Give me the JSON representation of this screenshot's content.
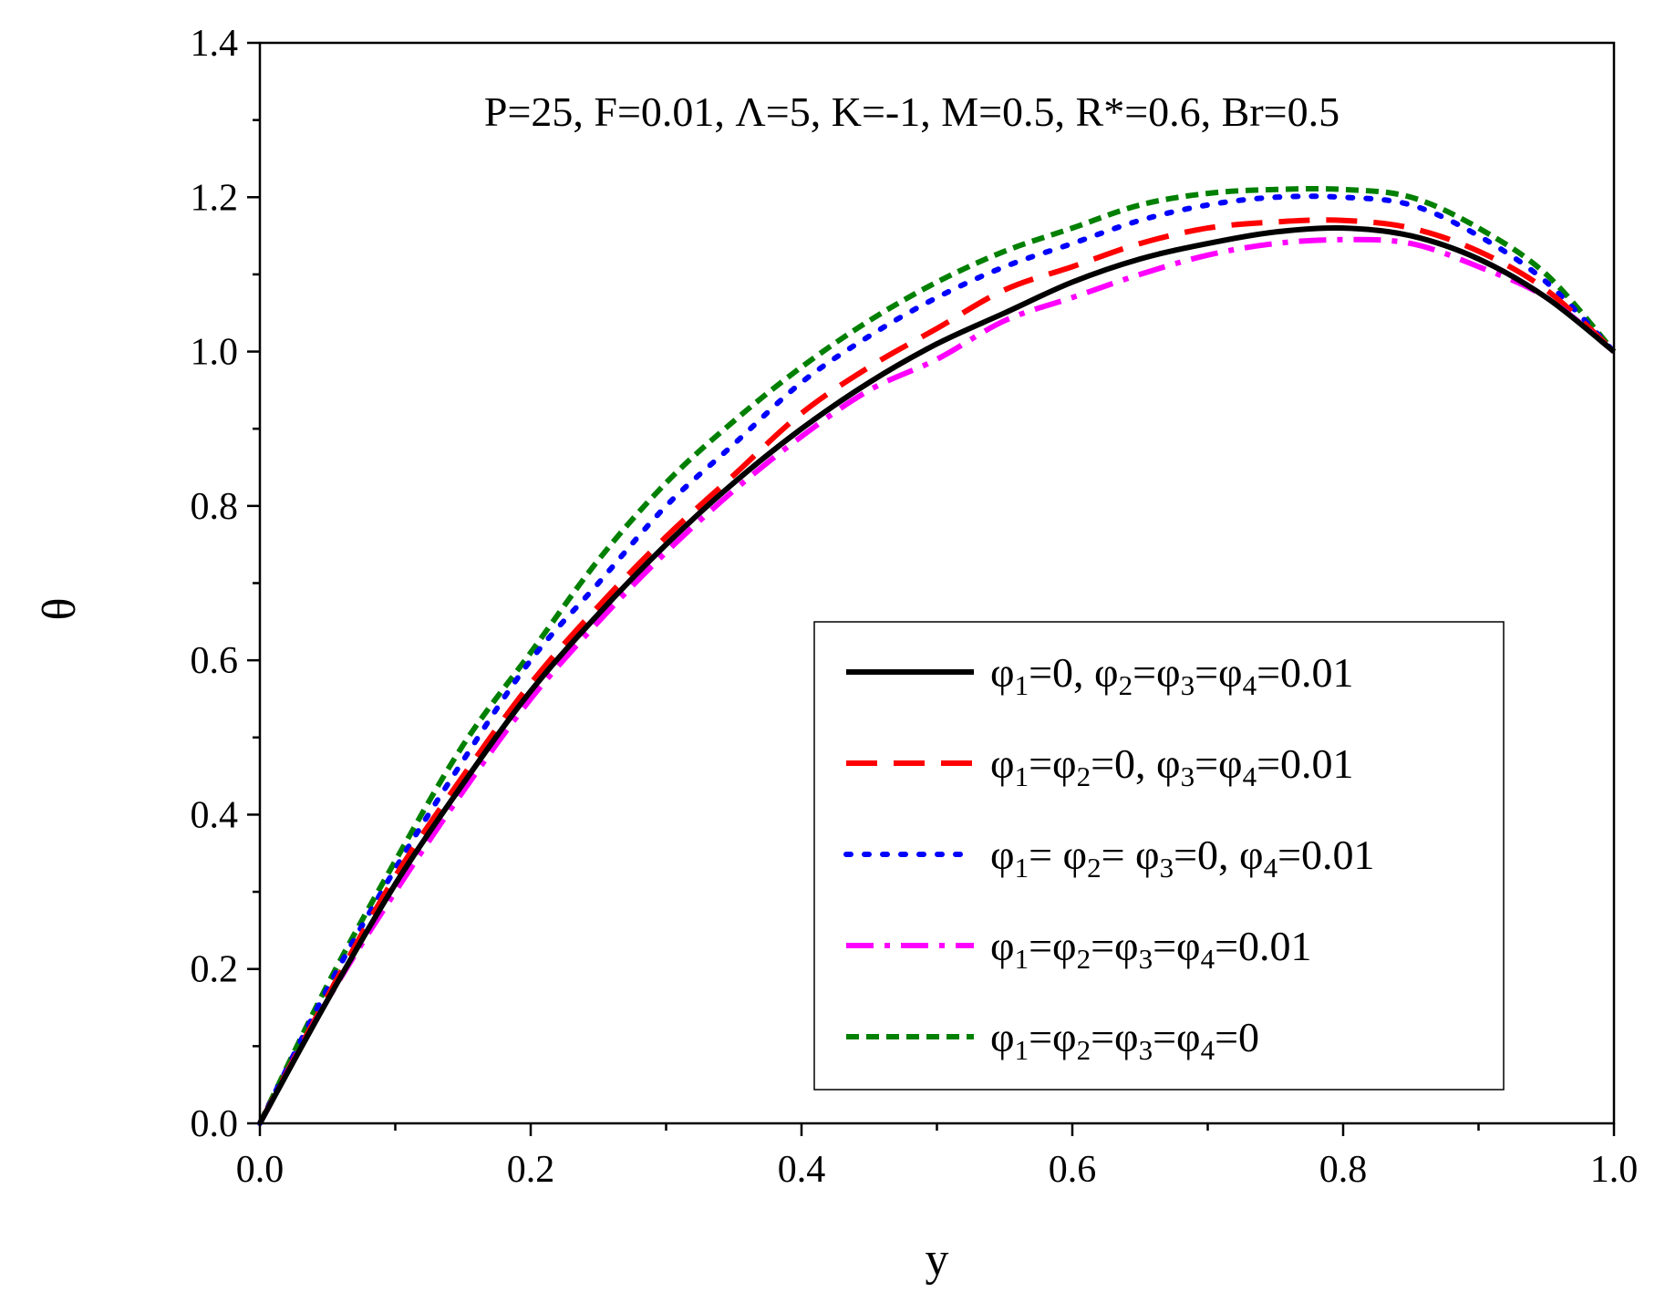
{
  "chart_data": {
    "type": "line",
    "title": "",
    "xlabel": "y",
    "ylabel": "θ",
    "xlim": [
      0.0,
      1.0
    ],
    "ylim": [
      0.0,
      1.4
    ],
    "x_ticks": [
      "0.0",
      "0.2",
      "0.4",
      "0.6",
      "0.8",
      "1.0"
    ],
    "y_ticks": [
      "0.0",
      "0.2",
      "0.4",
      "0.6",
      "0.8",
      "1.0",
      "1.2",
      "1.4"
    ],
    "x_tick_values": [
      0.0,
      0.2,
      0.4,
      0.6,
      0.8,
      1.0
    ],
    "y_tick_values": [
      0.0,
      0.2,
      0.4,
      0.6,
      0.8,
      1.0,
      1.2,
      1.4
    ],
    "annotation": "P=25, F=0.01, Λ=5, K=-1, M=0.5, R*=0.6, Br=0.5",
    "legend_position": "bottom-right",
    "grid": false,
    "x": [
      0.0,
      0.05,
      0.1,
      0.15,
      0.2,
      0.25,
      0.3,
      0.35,
      0.4,
      0.45,
      0.5,
      0.55,
      0.6,
      0.65,
      0.7,
      0.75,
      0.8,
      0.85,
      0.9,
      0.95,
      1.0
    ],
    "series": [
      {
        "name": "φ1=0, φ2=φ3=φ4=0.01",
        "label_parts": [
          [
            "φ",
            "1"
          ],
          [
            "=0, φ",
            "2"
          ],
          [
            "=φ",
            "3"
          ],
          [
            "=φ",
            "4"
          ],
          [
            "=0.01",
            ""
          ]
        ],
        "color": "#000000",
        "style": "solid",
        "values": [
          0.0,
          0.16,
          0.31,
          0.44,
          0.56,
          0.66,
          0.75,
          0.83,
          0.9,
          0.96,
          1.01,
          1.05,
          1.09,
          1.12,
          1.14,
          1.155,
          1.16,
          1.15,
          1.12,
          1.07,
          1.0
        ]
      },
      {
        "name": "φ1=φ2=0, φ3=φ4=0.01",
        "label_parts": [
          [
            "φ",
            "1"
          ],
          [
            "=φ",
            "2"
          ],
          [
            "=0, φ",
            "3"
          ],
          [
            "=φ",
            "4"
          ],
          [
            "=0.01",
            ""
          ]
        ],
        "color": "#ff0000",
        "style": "dash",
        "values": [
          0.0,
          0.165,
          0.32,
          0.45,
          0.57,
          0.67,
          0.76,
          0.84,
          0.92,
          0.98,
          1.03,
          1.08,
          1.11,
          1.14,
          1.16,
          1.168,
          1.17,
          1.16,
          1.13,
          1.08,
          1.0
        ]
      },
      {
        "name": "φ1= φ2= φ3=0, φ4=0.01",
        "label_parts": [
          [
            "φ",
            "1"
          ],
          [
            "= φ",
            "2"
          ],
          [
            "= φ",
            "3"
          ],
          [
            "=0, φ",
            "4"
          ],
          [
            "=0.01",
            ""
          ]
        ],
        "color": "#0000ff",
        "style": "dot",
        "values": [
          0.0,
          0.175,
          0.33,
          0.47,
          0.6,
          0.7,
          0.8,
          0.88,
          0.96,
          1.02,
          1.07,
          1.11,
          1.14,
          1.17,
          1.19,
          1.2,
          1.2,
          1.19,
          1.15,
          1.09,
          1.0
        ]
      },
      {
        "name": "φ1=φ2=φ3=φ4=0.01",
        "label_parts": [
          [
            "φ",
            "1"
          ],
          [
            "=φ",
            "2"
          ],
          [
            "=φ",
            "3"
          ],
          [
            "=φ",
            "4"
          ],
          [
            "=0.01",
            ""
          ]
        ],
        "color": "#ff00ff",
        "style": "dashdot",
        "values": [
          0.0,
          0.16,
          0.3,
          0.43,
          0.55,
          0.65,
          0.74,
          0.82,
          0.89,
          0.95,
          0.99,
          1.04,
          1.07,
          1.1,
          1.125,
          1.14,
          1.145,
          1.14,
          1.11,
          1.07,
          1.0
        ]
      },
      {
        "name": "φ1=φ2=φ3=φ4=0",
        "label_parts": [
          [
            "φ",
            "1"
          ],
          [
            "=φ",
            "2"
          ],
          [
            "=φ",
            "3"
          ],
          [
            "=φ",
            "4"
          ],
          [
            "=0",
            ""
          ]
        ],
        "color": "#008000",
        "style": "shortdash",
        "values": [
          0.0,
          0.18,
          0.34,
          0.49,
          0.61,
          0.73,
          0.83,
          0.91,
          0.98,
          1.04,
          1.09,
          1.13,
          1.16,
          1.19,
          1.205,
          1.21,
          1.21,
          1.2,
          1.16,
          1.1,
          1.0
        ]
      }
    ]
  }
}
